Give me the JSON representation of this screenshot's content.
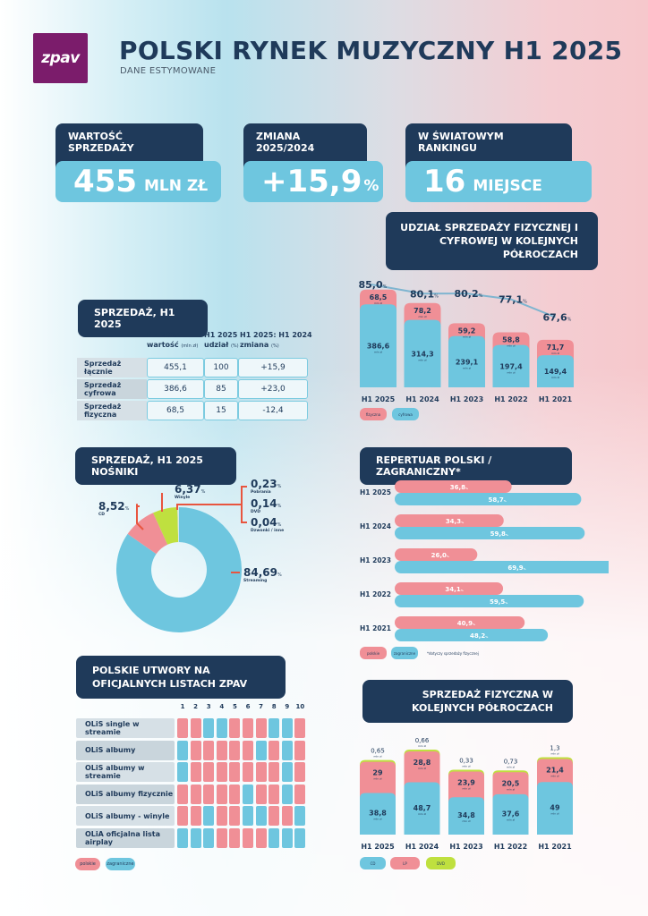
{
  "header": {
    "logo": "zpav",
    "title": "POLSKI RYNEK MUZYCZNY H1 2025",
    "subtitle": "DANE ESTYMOWANE"
  },
  "kpis": [
    {
      "label": "WARTOŚĆ SPRZEDAŻY",
      "value": "455",
      "unit": "MLN ZŁ"
    },
    {
      "label": "ZMIANA 2025/2024",
      "value": "+15,9",
      "unit": "%"
    },
    {
      "label": "W ŚWIATOWYM RANKINGU",
      "value": "16",
      "unit": "MIEJSCE"
    }
  ],
  "colors": {
    "navy": "#1f3a5a",
    "blue": "#6ec6df",
    "pink": "#f08f96",
    "green": "#bfe03f",
    "purple": "#7b1c6b",
    "orange_line": "#e8553f"
  },
  "chart_data": [
    {
      "type": "table",
      "title": "SPRZEDAŻ, H1 2025",
      "columns": [
        {
          "line1": "H1 2025",
          "line2": "wartość",
          "unit": "(mln zł)"
        },
        {
          "line1": "H1 2025",
          "line2": "udział",
          "unit": "(%)"
        },
        {
          "line1": "H1 2025: H1 2024",
          "line2": "zmiana",
          "unit": "(%)"
        }
      ],
      "rows": [
        {
          "label": "Sprzedaż łącznie",
          "values": [
            "455,1",
            "100",
            "+15,9"
          ]
        },
        {
          "label": "Sprzedaż cyfrowa",
          "values": [
            "386,6",
            "85",
            "+23,0"
          ]
        },
        {
          "label": "Sprzedaż fizyczna",
          "values": [
            "68,5",
            "15",
            "-12,4"
          ]
        }
      ]
    },
    {
      "type": "bar",
      "stacked": true,
      "title": "UDZIAŁ SPRZEDAŻY FIZYCZNEJ I CYFROWEJ W KOLEJNYCH PÓŁROCZACH",
      "categories": [
        "H1 2025",
        "H1 2024",
        "H1 2023",
        "H1 2022",
        "H1 2021"
      ],
      "unit_label": "mln zł",
      "series": [
        {
          "name": "cyfrowa",
          "color": "#6ec6df",
          "values": [
            386.6,
            314.3,
            239.1,
            197.4,
            149.4
          ],
          "labels": [
            "386,6",
            "314,3",
            "239,1",
            "197,4",
            "149,4"
          ]
        },
        {
          "name": "fizyczna",
          "color": "#f08f96",
          "values": [
            68.5,
            78.2,
            59.2,
            58.8,
            71.7
          ],
          "labels": [
            "68,5",
            "78,2",
            "59,2",
            "58,8",
            "71,7"
          ]
        }
      ],
      "line": {
        "name": "udział cyfrowej (%)",
        "values": [
          85.0,
          80.1,
          80.2,
          77.1,
          67.6
        ],
        "labels": [
          "85,0",
          "80,1",
          "80,2",
          "77,1",
          "67,6"
        ],
        "suffix": "%"
      },
      "legend": [
        "fizyczna",
        "cyfrowa"
      ],
      "legend_position": "bottom-left"
    },
    {
      "type": "pie",
      "donut": true,
      "title": "SPRZEDAŻ, H1 2025 NOŚNIKI",
      "slices": [
        {
          "name": "Streaming",
          "value": 84.69,
          "label": "84,69",
          "color": "#6ec6df"
        },
        {
          "name": "CD",
          "value": 8.52,
          "label": "8,52",
          "color": "#f08f96"
        },
        {
          "name": "Winyle",
          "value": 6.37,
          "label": "6,37",
          "color": "#bfe03f"
        },
        {
          "name": "Pobrania",
          "value": 0.23,
          "label": "0,23",
          "color": "#1f3a5a"
        },
        {
          "name": "DVD",
          "value": 0.14,
          "label": "0,14",
          "color": "#e8553f"
        },
        {
          "name": "Dzwonki / inne",
          "value": 0.04,
          "label": "0,04",
          "color": "#999999"
        }
      ],
      "suffix": "%"
    },
    {
      "type": "bar",
      "orientation": "horizontal",
      "title": "REPERTUAR POLSKI / ZAGRANICZNY*",
      "categories": [
        "H1 2025",
        "H1 2024",
        "H1 2023",
        "H1 2022",
        "H1 2021"
      ],
      "series": [
        {
          "name": "polskie",
          "color": "#f08f96",
          "values": [
            36.8,
            34.3,
            26.0,
            34.1,
            40.9
          ],
          "labels": [
            "36,8",
            "34,3",
            "26,0",
            "34,1",
            "40,9"
          ]
        },
        {
          "name": "zagraniczne",
          "color": "#6ec6df",
          "values": [
            58.7,
            59.8,
            69.9,
            59.5,
            48.2
          ],
          "labels": [
            "58,7",
            "59,8",
            "69,9",
            "59,5",
            "48,2"
          ]
        }
      ],
      "suffix": "%",
      "footnote": "*dotyczy sprzedaży fizycznej",
      "legend": [
        "polskie",
        "zagraniczne"
      ],
      "legend_position": "bottom-left"
    },
    {
      "type": "heatmap",
      "title": "POLSKIE UTWORY NA OFICJALNYCH LISTACH ZPAV",
      "columns": [
        "1",
        "2",
        "3",
        "4",
        "5",
        "6",
        "7",
        "8",
        "9",
        "10"
      ],
      "rows": [
        {
          "label": "OLiS single w streamie",
          "values": [
            "P",
            "P",
            "Z",
            "Z",
            "P",
            "P",
            "P",
            "Z",
            "Z",
            "P"
          ]
        },
        {
          "label": "OLiS albumy",
          "values": [
            "Z",
            "P",
            "P",
            "P",
            "P",
            "P",
            "Z",
            "P",
            "Z",
            "P"
          ]
        },
        {
          "label": "OLiS albumy w streamie",
          "values": [
            "Z",
            "P",
            "P",
            "P",
            "P",
            "P",
            "P",
            "P",
            "Z",
            "P"
          ]
        },
        {
          "label": "OLiS albumy fizycznie",
          "values": [
            "P",
            "P",
            "P",
            "P",
            "P",
            "Z",
            "P",
            "P",
            "Z",
            "P"
          ]
        },
        {
          "label": "OLiS albumy - winyle",
          "values": [
            "P",
            "P",
            "Z",
            "P",
            "P",
            "Z",
            "Z",
            "P",
            "P",
            "Z"
          ]
        },
        {
          "label": "OLiA oficjalna lista airplay",
          "values": [
            "Z",
            "Z",
            "Z",
            "P",
            "P",
            "P",
            "P",
            "Z",
            "Z",
            "Z"
          ]
        }
      ],
      "key": {
        "P": "polskie",
        "Z": "zagraniczne"
      },
      "legend": [
        "polskie",
        "zagraniczne"
      ]
    },
    {
      "type": "bar",
      "stacked": true,
      "title": "SPRZEDAŻ FIZYCZNA W KOLEJNYCH PÓŁROCZACH",
      "categories": [
        "H1 2025",
        "H1 2024",
        "H1 2023",
        "H1 2022",
        "H1 2021"
      ],
      "unit_label": "mln zł",
      "series": [
        {
          "name": "CD",
          "color": "#6ec6df",
          "values": [
            38.8,
            48.7,
            34.8,
            37.6,
            49
          ],
          "labels": [
            "38,8",
            "48,7",
            "34,8",
            "37,6",
            "49"
          ]
        },
        {
          "name": "LP",
          "color": "#f08f96",
          "values": [
            29,
            28.8,
            23.9,
            20.5,
            21.4
          ],
          "labels": [
            "29",
            "28,8",
            "23,9",
            "20,5",
            "21,4"
          ]
        },
        {
          "name": "DVD",
          "color": "#bfe03f",
          "values": [
            0.65,
            0.66,
            0.33,
            0.73,
            1.3
          ],
          "labels": [
            "0,65",
            "0,66",
            "0,33",
            "0,73",
            "1,3"
          ]
        }
      ],
      "legend": [
        "CD",
        "LP",
        "DVD"
      ],
      "legend_position": "bottom-left"
    }
  ]
}
